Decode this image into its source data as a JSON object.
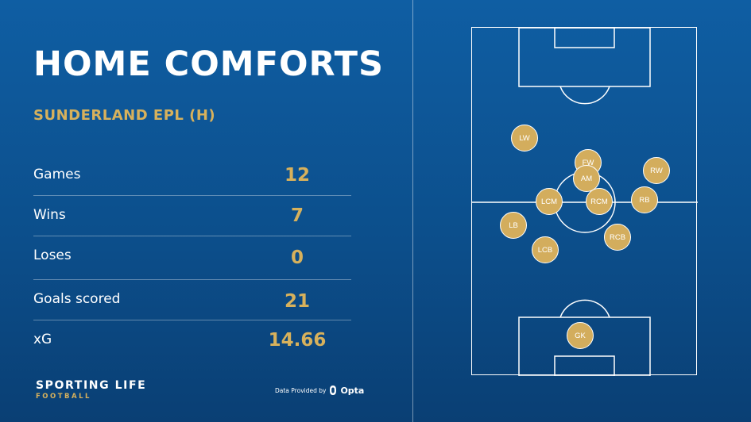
{
  "header": {
    "title": "HOME COMFORTS",
    "subtitle": "SUNDERLAND EPL (H)"
  },
  "stats": [
    {
      "label": "Games",
      "value": "12"
    },
    {
      "label": "Wins",
      "value": "7"
    },
    {
      "label": "Loses",
      "value": "0"
    },
    {
      "label": "Goals scored",
      "value": "21"
    },
    {
      "label": "xG",
      "value": "14.66"
    }
  ],
  "branding": {
    "name": "SPORTING LIFE",
    "sub": "FOOTBALL"
  },
  "credit": {
    "text": "Data Provided by",
    "provider": "Opta"
  },
  "formation": {
    "positions": {
      "lw": "LW",
      "fw": "FW",
      "am": "AM",
      "rw": "RW",
      "lcm": "LCM",
      "rcm": "RCM",
      "rb": "RB",
      "lb": "LB",
      "rcb": "RCB",
      "lcb": "LCB",
      "gk": "GK"
    }
  },
  "colors": {
    "accent": "#d7b15c",
    "background": "#0c4f8c",
    "player": "#d3ad5d"
  }
}
